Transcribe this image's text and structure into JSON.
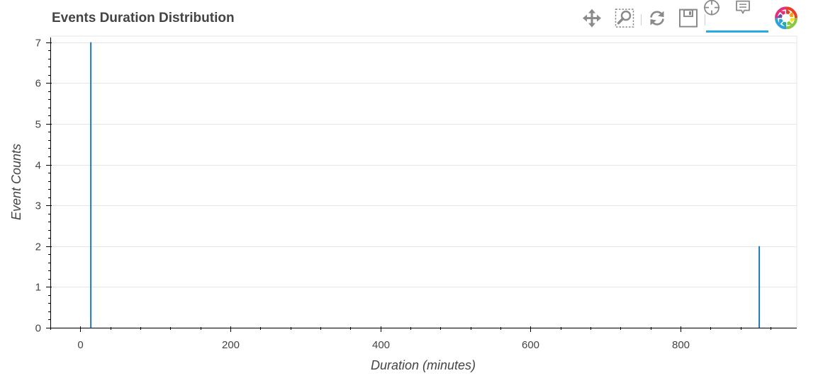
{
  "page": {
    "title": "Events Duration Distribution"
  },
  "toolbar": {
    "tools": [
      {
        "icon": "pan-icon",
        "active": true
      },
      {
        "icon": "box-zoom-icon",
        "active": false
      },
      {
        "icon": "reset-icon",
        "active": false
      },
      {
        "icon": "save-icon",
        "active": false
      },
      {
        "icon": "crosshair-icon",
        "active": true
      },
      {
        "icon": "hover-icon",
        "active": true
      },
      {
        "icon": "bokeh-logo-icon",
        "active": false
      }
    ],
    "active_color": "#26aae1"
  },
  "chart_data": {
    "type": "bar",
    "title": "Events Duration Distribution",
    "xlabel": "Duration (minutes)",
    "ylabel": "Event Counts",
    "x": [
      14,
      905
    ],
    "values": [
      7,
      2
    ],
    "xlim": [
      -40,
      955
    ],
    "ylim": [
      0,
      7.15
    ],
    "xticks": [
      0,
      200,
      400,
      600,
      800
    ],
    "yticks": [
      0,
      1,
      2,
      3,
      4,
      5,
      6,
      7
    ],
    "grid": "horizontal",
    "bar_color": "#1f77b4"
  }
}
